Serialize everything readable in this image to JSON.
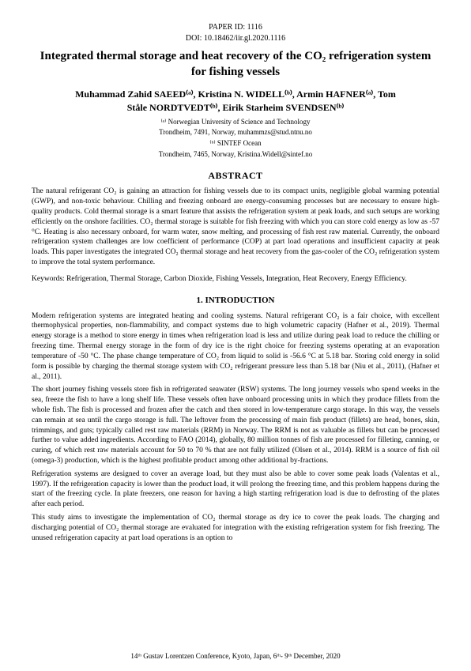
{
  "header": {
    "paper_id": "PAPER ID: 1116",
    "doi": "DOI: 10.18462/iir.gl.2020.1116"
  },
  "title": "Integrated thermal storage and heat recovery of the CO₂ refrigeration system for fishing vessels",
  "authors_line1": "Muhammad Zahid SAEED⁽ᵃ⁾, Kristina N. WIDELL⁽ᵇ⁾, Armin HAFNER⁽ᵃ⁾, Tom",
  "authors_line2": "Ståle NORDTVEDT⁽ᵇ⁾, Eirik Starheim SVENDSEN⁽ᵇ⁾",
  "affiliations": {
    "a_label": "⁽ᵃ⁾ Norwegian University of Science and Technology",
    "a_addr": "Trondheim, 7491, Norway, muhammzs@stud.ntnu.no",
    "b_label": "⁽ᵇ⁾ SINTEF Ocean",
    "b_addr": "Trondheim, 7465, Norway, Kristina.Widell@sintef.no"
  },
  "abstract": {
    "heading": "ABSTRACT",
    "body": "The natural refrigerant CO₂ is gaining an attraction for fishing vessels due to its compact units, negligible global warming potential (GWP), and non-toxic behaviour. Chilling and freezing onboard are energy-consuming processes but are necessary to ensure high-quality products. Cold thermal storage is a smart feature that assists the refrigeration system at peak loads, and such setups are working efficiently on the onshore facilities. CO₂ thermal storage is suitable for fish freezing with which you can store cold energy as low as -57 °C. Heating is also necessary onboard, for warm water, snow melting, and processing of fish rest raw material. Currently, the onboard refrigeration system challenges are low coefficient of performance (COP) at part load operations and insufficient capacity at peak loads. This paper investigates the integrated CO₂ thermal storage and heat recovery from the gas-cooler of the CO₂ refrigeration system to improve the total system performance.",
    "keywords": "Keywords: Refrigeration, Thermal Storage, Carbon Dioxide, Fishing Vessels, Integration, Heat Recovery, Energy Efficiency."
  },
  "section1": {
    "heading": "1.   INTRODUCTION",
    "p1": "Modern refrigeration systems are integrated heating and cooling systems. Natural refrigerant CO₂ is a fair choice, with excellent thermophysical properties, non-flammability, and compact systems due to high volumetric capacity (Hafner et al., 2019). Thermal energy storage is a method to store energy in times when refrigeration load is less and utilize during peak load to reduce the chilling or freezing time. Thermal energy storage in the form of dry ice is the right choice for freezing systems operating at an evaporation temperature of -50 °C. The phase change temperature of CO₂ from liquid to solid is -56.6 °C at 5.18 bar. Storing cold energy in solid form is possible by charging the thermal storage system with CO₂ refrigerant pressure less than 5.18 bar (Niu et al., 2011), (Hafner et al., 2011).",
    "p2": "The short journey fishing vessels store fish in refrigerated seawater (RSW) systems. The long journey vessels who spend weeks in the sea, freeze the fish to have a long shelf life. These vessels often have onboard processing units in which they produce fillets from the whole fish. The fish is processed and frozen after the catch and then stored in low-temperature cargo storage. In this way, the vessels can remain at sea until the cargo storage is full. The leftover from the processing of main fish product (fillets) are head, bones, skin, trimmings, and guts; typically called rest raw materials (RRM) in Norway. The RRM is not as valuable as fillets but can be processed further to value added ingredients. According to FAO (2014), globally, 80 million tonnes of fish are processed for filleting, canning, or curing, of which rest raw materials account for 50 to 70 % that are not fully utilized (Olsen et al., 2014). RRM is a source of fish oil (omega-3) production, which is the highest profitable product among other additional by-fractions.",
    "p3": "Refrigeration systems are designed to cover an average load, but they must also be able to cover some peak loads (Valentas et al., 1997). If the refrigeration capacity is lower than the product load, it will prolong the freezing time, and this problem happens during the start of the freezing cycle. In plate freezers, one reason for having a high starting refrigeration load is due to defrosting of the plates after each period.",
    "p4": "This study aims to investigate the implementation of CO₂ thermal storage as dry ice to cover the peak loads. The charging and discharging potential of CO₂ thermal storage are evaluated for integration with the existing refrigeration system for fish freezing.  The unused refrigeration capacity at part load operations is an option to"
  },
  "footer": "14ᵗʰ Gustav Lorentzen Conference, Kyoto, Japan, 6ᵗʰ- 9ᵗʰ December, 2020"
}
